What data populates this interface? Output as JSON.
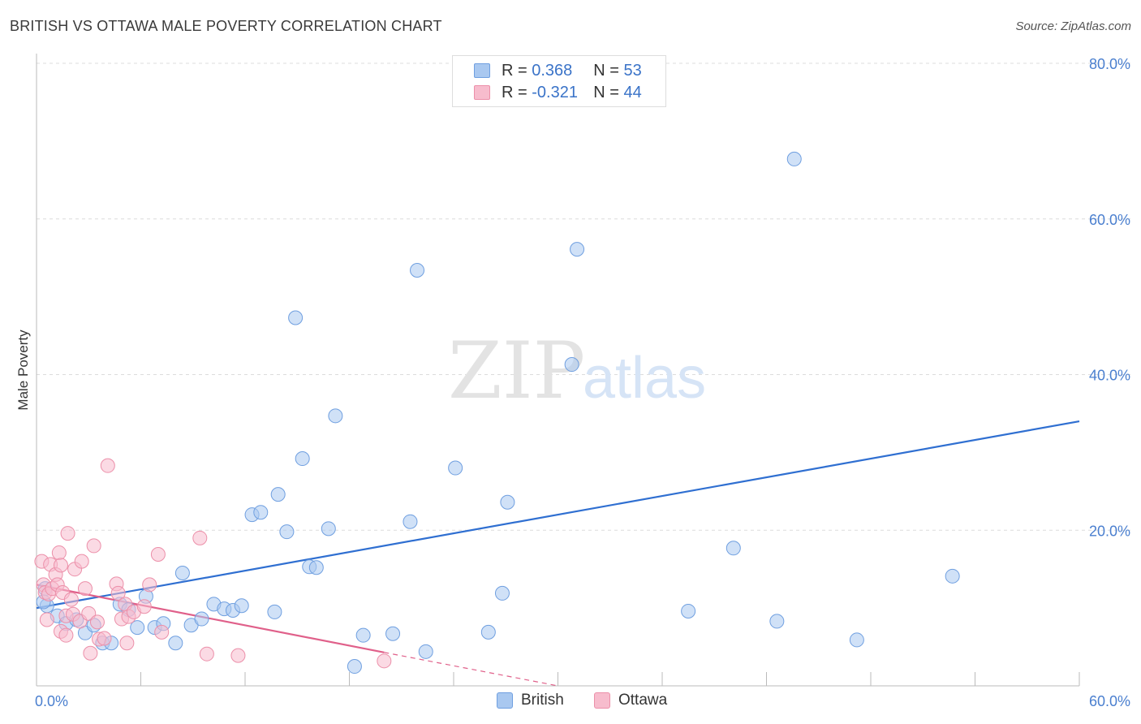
{
  "header": {
    "title": "BRITISH VS OTTAWA MALE POVERTY CORRELATION CHART",
    "source": "Source: ZipAtlas.com"
  },
  "watermark": {
    "zip": "ZIP",
    "atlas": "atlas"
  },
  "legend": {
    "rows": [
      {
        "r_label": "R =",
        "r_value": "0.368",
        "n_label": "N =",
        "n_value": "53",
        "color": "#a9c8f0",
        "border": "#6f9fe0"
      },
      {
        "r_label": "R =",
        "r_value": "-0.321",
        "n_label": "N =",
        "n_value": "44",
        "color": "#f7bccd",
        "border": "#ec8fa9"
      }
    ],
    "bottom": [
      {
        "label": "British",
        "color": "#a9c8f0",
        "border": "#6f9fe0"
      },
      {
        "label": "Ottawa",
        "color": "#f7bccd",
        "border": "#ec8fa9"
      }
    ]
  },
  "chart_data": {
    "type": "scatter",
    "title": "BRITISH VS OTTAWA MALE POVERTY CORRELATION CHART",
    "xlabel": "",
    "ylabel": "Male Poverty",
    "xlim": [
      0,
      60
    ],
    "ylim": [
      0,
      80
    ],
    "x_tick_labels": [
      "0.0%",
      "60.0%"
    ],
    "y_tick_labels": [
      "20.0%",
      "40.0%",
      "60.0%",
      "80.0%"
    ],
    "y_ticks": [
      20,
      40,
      60,
      80
    ],
    "grid": true,
    "legend_placement": "top-center",
    "series": [
      {
        "name": "British",
        "color": "#6f9fe0",
        "fill": "#a9c8f0",
        "trend": {
          "x0": 0,
          "y0": 10.0,
          "x1": 60,
          "y1": 34.0,
          "color": "#2f6fd1"
        },
        "points": [
          [
            0.5,
            12.5
          ],
          [
            0.6,
            10.3
          ],
          [
            1.2,
            9.0
          ],
          [
            1.7,
            8.0
          ],
          [
            2.3,
            8.5
          ],
          [
            2.8,
            6.8
          ],
          [
            3.3,
            7.8
          ],
          [
            3.8,
            5.5
          ],
          [
            4.3,
            5.5
          ],
          [
            4.8,
            10.5
          ],
          [
            5.3,
            9.8
          ],
          [
            5.8,
            7.5
          ],
          [
            6.3,
            11.5
          ],
          [
            6.8,
            7.5
          ],
          [
            7.3,
            8.0
          ],
          [
            8.0,
            5.5
          ],
          [
            8.4,
            14.5
          ],
          [
            8.9,
            7.8
          ],
          [
            9.5,
            8.6
          ],
          [
            10.2,
            10.5
          ],
          [
            10.8,
            9.9
          ],
          [
            11.3,
            9.7
          ],
          [
            11.8,
            10.3
          ],
          [
            12.4,
            22.0
          ],
          [
            12.9,
            22.3
          ],
          [
            13.7,
            9.5
          ],
          [
            13.9,
            24.6
          ],
          [
            14.4,
            19.8
          ],
          [
            14.9,
            47.3
          ],
          [
            15.3,
            29.2
          ],
          [
            15.7,
            15.3
          ],
          [
            16.1,
            15.2
          ],
          [
            16.8,
            20.2
          ],
          [
            17.2,
            34.7
          ],
          [
            18.3,
            2.5
          ],
          [
            18.8,
            6.5
          ],
          [
            20.5,
            6.7
          ],
          [
            21.5,
            21.1
          ],
          [
            21.9,
            53.4
          ],
          [
            22.4,
            4.4
          ],
          [
            24.1,
            28.0
          ],
          [
            26.0,
            6.9
          ],
          [
            26.8,
            11.9
          ],
          [
            27.1,
            23.6
          ],
          [
            30.8,
            41.3
          ],
          [
            31.1,
            56.1
          ],
          [
            37.5,
            9.6
          ],
          [
            40.1,
            17.7
          ],
          [
            42.6,
            8.3
          ],
          [
            43.6,
            67.7
          ],
          [
            47.2,
            5.9
          ],
          [
            52.7,
            14.1
          ],
          [
            0.4,
            10.8
          ]
        ]
      },
      {
        "name": "Ottawa",
        "color": "#ec8fa9",
        "fill": "#f7bccd",
        "trend": {
          "x0": 0,
          "y0": 13.0,
          "x1": 20,
          "y1": 4.3,
          "dash_to_x": 30,
          "dash_to_y": 0.0,
          "color": "#e0608a"
        },
        "points": [
          [
            0.3,
            16.0
          ],
          [
            0.4,
            13.0
          ],
          [
            0.5,
            12.0
          ],
          [
            0.7,
            11.8
          ],
          [
            0.8,
            15.6
          ],
          [
            0.9,
            12.5
          ],
          [
            1.1,
            14.3
          ],
          [
            1.2,
            13.0
          ],
          [
            1.3,
            17.1
          ],
          [
            1.4,
            15.5
          ],
          [
            1.4,
            7.0
          ],
          [
            1.5,
            12.0
          ],
          [
            1.7,
            9.0
          ],
          [
            1.7,
            6.5
          ],
          [
            1.8,
            19.6
          ],
          [
            2.0,
            11.1
          ],
          [
            2.1,
            9.2
          ],
          [
            2.2,
            15.0
          ],
          [
            2.5,
            8.3
          ],
          [
            2.6,
            16.0
          ],
          [
            2.8,
            12.5
          ],
          [
            3.0,
            9.3
          ],
          [
            3.1,
            4.2
          ],
          [
            3.3,
            18.0
          ],
          [
            3.5,
            8.2
          ],
          [
            3.6,
            6.0
          ],
          [
            3.9,
            6.1
          ],
          [
            4.1,
            28.3
          ],
          [
            4.6,
            13.1
          ],
          [
            4.7,
            11.9
          ],
          [
            4.9,
            8.6
          ],
          [
            5.1,
            10.5
          ],
          [
            5.2,
            5.5
          ],
          [
            5.3,
            8.9
          ],
          [
            5.6,
            9.5
          ],
          [
            6.2,
            10.2
          ],
          [
            6.5,
            13.0
          ],
          [
            7.0,
            16.9
          ],
          [
            7.2,
            6.9
          ],
          [
            9.4,
            19.0
          ],
          [
            9.8,
            4.1
          ],
          [
            11.6,
            3.9
          ],
          [
            20.0,
            3.2
          ],
          [
            0.6,
            8.5
          ]
        ]
      }
    ]
  }
}
